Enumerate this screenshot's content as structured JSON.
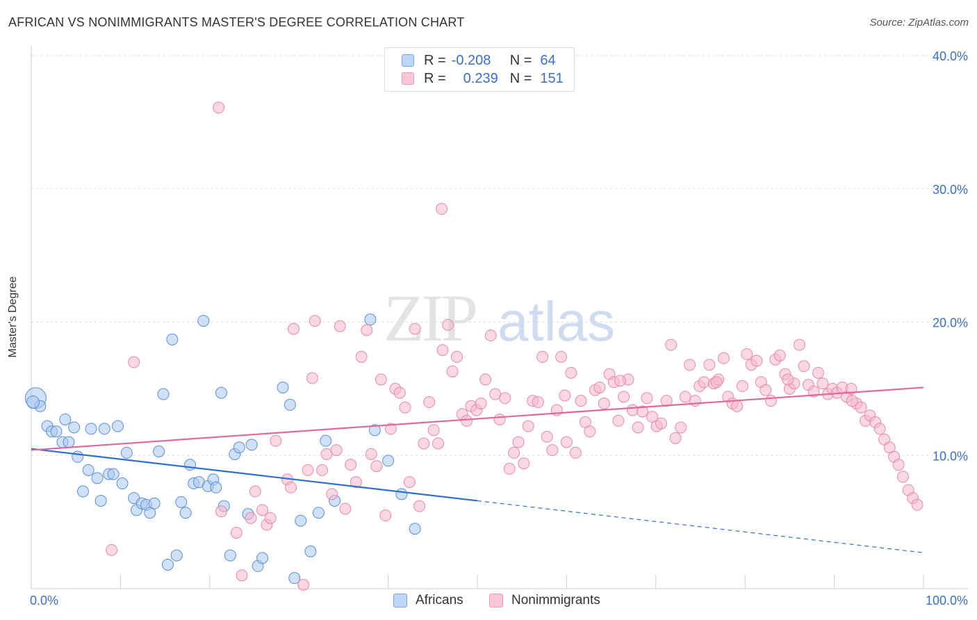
{
  "title": "AFRICAN VS NONIMMIGRANTS MASTER'S DEGREE CORRELATION CHART",
  "source": "Source: ZipAtlas.com",
  "watermark": {
    "zip": "ZIP",
    "atlas": "atlas"
  },
  "legend": {
    "africans": {
      "r_label": "R =",
      "r_value": "-0.208",
      "n_label": "N =",
      "n_value": "64"
    },
    "nonimmigrants": {
      "r_label": "R =",
      "r_value": "0.239",
      "n_label": "N =",
      "n_value": "151"
    }
  },
  "bottom_legend": {
    "africans": "Africans",
    "nonimmigrants": "Nonimmigrants"
  },
  "colors": {
    "africans_fill": "#a9c9f0",
    "africans_stroke": "#5b8fd6",
    "africans_line": "#2e6fd0",
    "nonimmigrants_fill": "#f5b8cc",
    "nonimmigrants_stroke": "#e58aa8",
    "nonimmigrants_line": "#e0689a",
    "axis_text": "#3d6fc4",
    "grid": "#dddddd"
  },
  "chart_data": {
    "type": "scatter",
    "title": "AFRICAN VS NONIMMIGRANTS MASTER'S DEGREE CORRELATION CHART",
    "xlabel": "",
    "ylabel": "Master's Degree",
    "xlim": [
      0,
      100
    ],
    "ylim": [
      0,
      40
    ],
    "x_tick_labels": [
      "0.0%",
      "100.0%"
    ],
    "y_ticks": [
      10,
      20,
      30,
      40
    ],
    "y_tick_labels": [
      "10.0%",
      "20.0%",
      "30.0%",
      "40.0%"
    ],
    "grid": true,
    "series": [
      {
        "name": "Africans",
        "points": [
          [
            0.5,
            14.3
          ],
          [
            1.0,
            13.7
          ],
          [
            1.8,
            12.2
          ],
          [
            2.3,
            11.8
          ],
          [
            2.8,
            11.8
          ],
          [
            3.5,
            11.0
          ],
          [
            3.8,
            12.7
          ],
          [
            4.2,
            11.0
          ],
          [
            4.8,
            12.1
          ],
          [
            5.2,
            9.9
          ],
          [
            5.8,
            7.3
          ],
          [
            6.4,
            8.9
          ],
          [
            6.7,
            12.0
          ],
          [
            7.4,
            8.3
          ],
          [
            7.8,
            6.6
          ],
          [
            8.2,
            12.0
          ],
          [
            8.7,
            8.6
          ],
          [
            9.2,
            8.6
          ],
          [
            9.7,
            12.2
          ],
          [
            10.2,
            7.9
          ],
          [
            10.7,
            10.2
          ],
          [
            11.5,
            6.8
          ],
          [
            11.8,
            5.9
          ],
          [
            12.4,
            6.4
          ],
          [
            12.9,
            6.3
          ],
          [
            13.3,
            5.7
          ],
          [
            13.8,
            6.4
          ],
          [
            14.3,
            10.3
          ],
          [
            14.8,
            14.6
          ],
          [
            15.3,
            1.8
          ],
          [
            15.8,
            18.7
          ],
          [
            16.3,
            2.5
          ],
          [
            16.8,
            6.5
          ],
          [
            17.3,
            5.7
          ],
          [
            17.8,
            9.3
          ],
          [
            18.2,
            7.9
          ],
          [
            18.8,
            8.0
          ],
          [
            19.3,
            20.1
          ],
          [
            19.8,
            7.7
          ],
          [
            20.4,
            8.2
          ],
          [
            20.7,
            7.6
          ],
          [
            21.3,
            14.7
          ],
          [
            21.6,
            6.2
          ],
          [
            22.3,
            2.5
          ],
          [
            22.8,
            10.1
          ],
          [
            23.3,
            10.6
          ],
          [
            24.3,
            5.6
          ],
          [
            24.7,
            10.8
          ],
          [
            25.4,
            1.7
          ],
          [
            25.9,
            2.3
          ],
          [
            28.2,
            15.1
          ],
          [
            29.0,
            13.8
          ],
          [
            29.5,
            0.8
          ],
          [
            30.2,
            5.1
          ],
          [
            31.3,
            2.8
          ],
          [
            32.2,
            5.7
          ],
          [
            33.0,
            11.1
          ],
          [
            34.0,
            6.6
          ],
          [
            38.0,
            20.2
          ],
          [
            38.5,
            11.9
          ],
          [
            40.0,
            9.6
          ],
          [
            41.5,
            7.1
          ],
          [
            43.0,
            4.5
          ],
          [
            0.2,
            14.0
          ]
        ]
      },
      {
        "name": "Nonimmigrants",
        "points": [
          [
            21.0,
            36.1
          ],
          [
            46.0,
            28.5
          ],
          [
            9.0,
            2.9
          ],
          [
            11.5,
            17.0
          ],
          [
            21.3,
            5.8
          ],
          [
            23.0,
            4.2
          ],
          [
            23.6,
            1.0
          ],
          [
            24.6,
            5.3
          ],
          [
            25.1,
            7.3
          ],
          [
            25.9,
            5.9
          ],
          [
            26.4,
            4.8
          ],
          [
            26.8,
            5.3
          ],
          [
            27.4,
            11.1
          ],
          [
            28.7,
            8.2
          ],
          [
            29.1,
            7.6
          ],
          [
            29.4,
            19.5
          ],
          [
            30.5,
            0.3
          ],
          [
            31.0,
            8.9
          ],
          [
            31.5,
            15.8
          ],
          [
            32.6,
            8.9
          ],
          [
            33.1,
            10.1
          ],
          [
            33.7,
            7.1
          ],
          [
            34.2,
            10.4
          ],
          [
            34.6,
            19.7
          ],
          [
            35.2,
            6.0
          ],
          [
            35.8,
            9.3
          ],
          [
            36.4,
            8.0
          ],
          [
            37.0,
            17.4
          ],
          [
            37.6,
            19.4
          ],
          [
            38.1,
            10.1
          ],
          [
            38.7,
            9.2
          ],
          [
            39.2,
            15.7
          ],
          [
            39.7,
            5.5
          ],
          [
            40.3,
            12.0
          ],
          [
            40.8,
            15.0
          ],
          [
            41.3,
            14.7
          ],
          [
            41.9,
            13.6
          ],
          [
            42.4,
            8.0
          ],
          [
            43.0,
            19.5
          ],
          [
            43.5,
            6.2
          ],
          [
            44.0,
            10.9
          ],
          [
            44.6,
            14.0
          ],
          [
            45.1,
            11.9
          ],
          [
            45.6,
            10.9
          ],
          [
            46.1,
            17.9
          ],
          [
            46.7,
            19.8
          ],
          [
            47.2,
            16.3
          ],
          [
            47.7,
            17.4
          ],
          [
            48.3,
            13.1
          ],
          [
            48.8,
            12.6
          ],
          [
            49.3,
            13.7
          ],
          [
            49.9,
            13.4
          ],
          [
            50.4,
            13.9
          ],
          [
            50.9,
            15.7
          ],
          [
            51.5,
            19.0
          ],
          [
            52.0,
            14.6
          ],
          [
            52.5,
            12.7
          ],
          [
            53.1,
            14.3
          ],
          [
            53.6,
            9.0
          ],
          [
            54.1,
            10.2
          ],
          [
            54.6,
            11.0
          ],
          [
            55.2,
            9.4
          ],
          [
            55.7,
            12.2
          ],
          [
            56.2,
            14.1
          ],
          [
            56.8,
            14.0
          ],
          [
            57.3,
            17.4
          ],
          [
            57.8,
            11.4
          ],
          [
            58.4,
            10.4
          ],
          [
            58.9,
            13.4
          ],
          [
            59.4,
            17.4
          ],
          [
            60.0,
            11.0
          ],
          [
            60.5,
            16.2
          ],
          [
            61.0,
            10.2
          ],
          [
            61.6,
            14.1
          ],
          [
            62.1,
            12.5
          ],
          [
            62.6,
            11.8
          ],
          [
            63.2,
            14.9
          ],
          [
            63.7,
            15.1
          ],
          [
            64.2,
            13.9
          ],
          [
            64.8,
            16.1
          ],
          [
            65.3,
            15.5
          ],
          [
            65.8,
            12.6
          ],
          [
            66.4,
            14.4
          ],
          [
            66.9,
            15.7
          ],
          [
            67.4,
            13.4
          ],
          [
            68.0,
            12.1
          ],
          [
            68.5,
            13.3
          ],
          [
            69.0,
            14.3
          ],
          [
            69.6,
            12.9
          ],
          [
            70.1,
            12.2
          ],
          [
            70.6,
            12.4
          ],
          [
            71.2,
            14.1
          ],
          [
            71.7,
            18.3
          ],
          [
            72.2,
            11.3
          ],
          [
            72.8,
            12.1
          ],
          [
            73.3,
            14.4
          ],
          [
            73.8,
            16.8
          ],
          [
            74.4,
            14.1
          ],
          [
            74.9,
            15.2
          ],
          [
            75.4,
            15.5
          ],
          [
            76.0,
            16.8
          ],
          [
            76.5,
            15.4
          ],
          [
            77.0,
            15.7
          ],
          [
            77.6,
            17.3
          ],
          [
            78.1,
            14.4
          ],
          [
            78.6,
            13.9
          ],
          [
            79.1,
            13.7
          ],
          [
            79.7,
            15.2
          ],
          [
            80.2,
            17.6
          ],
          [
            80.7,
            16.8
          ],
          [
            81.3,
            17.1
          ],
          [
            81.8,
            15.5
          ],
          [
            82.3,
            14.9
          ],
          [
            82.9,
            14.1
          ],
          [
            83.4,
            17.2
          ],
          [
            83.9,
            17.5
          ],
          [
            84.5,
            16.1
          ],
          [
            85.0,
            15.0
          ],
          [
            85.5,
            15.4
          ],
          [
            86.1,
            18.3
          ],
          [
            86.6,
            16.7
          ],
          [
            87.1,
            15.3
          ],
          [
            87.7,
            14.8
          ],
          [
            88.2,
            16.2
          ],
          [
            88.7,
            15.4
          ],
          [
            89.3,
            14.6
          ],
          [
            89.8,
            15.0
          ],
          [
            90.3,
            14.7
          ],
          [
            90.9,
            15.1
          ],
          [
            91.4,
            14.4
          ],
          [
            91.9,
            15.0
          ],
          [
            92.5,
            13.9
          ],
          [
            93.0,
            13.6
          ],
          [
            93.5,
            12.6
          ],
          [
            94.0,
            13.0
          ],
          [
            94.6,
            12.5
          ],
          [
            95.1,
            12.0
          ],
          [
            95.6,
            11.2
          ],
          [
            96.2,
            10.6
          ],
          [
            96.7,
            9.9
          ],
          [
            97.2,
            9.3
          ],
          [
            97.7,
            8.4
          ],
          [
            98.3,
            7.4
          ],
          [
            98.8,
            6.8
          ],
          [
            99.3,
            6.3
          ],
          [
            31.8,
            20.1
          ],
          [
            66.0,
            15.6
          ],
          [
            59.8,
            14.5
          ],
          [
            76.8,
            15.5
          ],
          [
            84.8,
            15.7
          ],
          [
            92.0,
            14.1
          ]
        ]
      }
    ],
    "trend_lines": [
      {
        "series": "Africans",
        "solid_from": [
          0,
          10.5
        ],
        "solid_to": [
          50,
          6.6
        ],
        "dashed_to": [
          100,
          2.7
        ]
      },
      {
        "series": "Nonimmigrants",
        "from": [
          0,
          10.4
        ],
        "to": [
          100,
          15.1
        ]
      }
    ]
  }
}
